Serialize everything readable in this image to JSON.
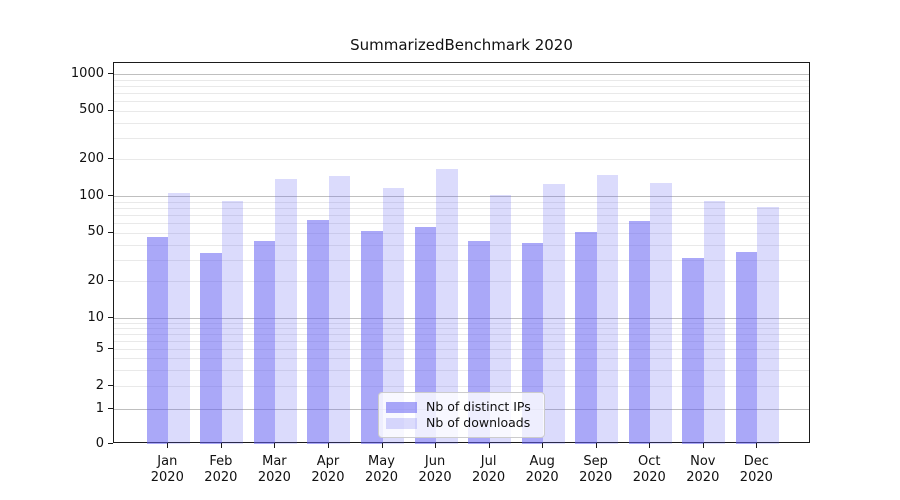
{
  "title": "SummarizedBenchmark 2020",
  "colors": {
    "bar_dark_fill": "rgba(100,97,242,0.55)",
    "bar_light_fill": "rgba(101,99,240,0.23)",
    "grid_major": "#bfbfbf",
    "grid_minor": "#e9e9e9",
    "spine": "#1b1b1b"
  },
  "chart_data": {
    "type": "bar",
    "title": "SummarizedBenchmark 2020",
    "categories": [
      "Jan",
      "Feb",
      "Mar",
      "Apr",
      "May",
      "Jun",
      "Jul",
      "Aug",
      "Sep",
      "Oct",
      "Nov",
      "Dec"
    ],
    "year_label": "2020",
    "series": [
      {
        "name": "Nb of distinct IPs",
        "values": [
          46,
          34,
          43,
          63,
          52,
          56,
          43,
          41,
          51,
          62,
          31,
          35
        ]
      },
      {
        "name": "Nb of downloads",
        "values": [
          106,
          91,
          139,
          147,
          117,
          167,
          102,
          126,
          148,
          129,
          91,
          82
        ]
      }
    ],
    "xlabel": "",
    "ylabel": "",
    "yscale": "symlog",
    "ylim": [
      0,
      1230
    ],
    "yticks": [
      0,
      1,
      2,
      5,
      10,
      20,
      50,
      100,
      200,
      500,
      1000
    ],
    "grid": "on",
    "legend_position": "lower-center-inside"
  }
}
